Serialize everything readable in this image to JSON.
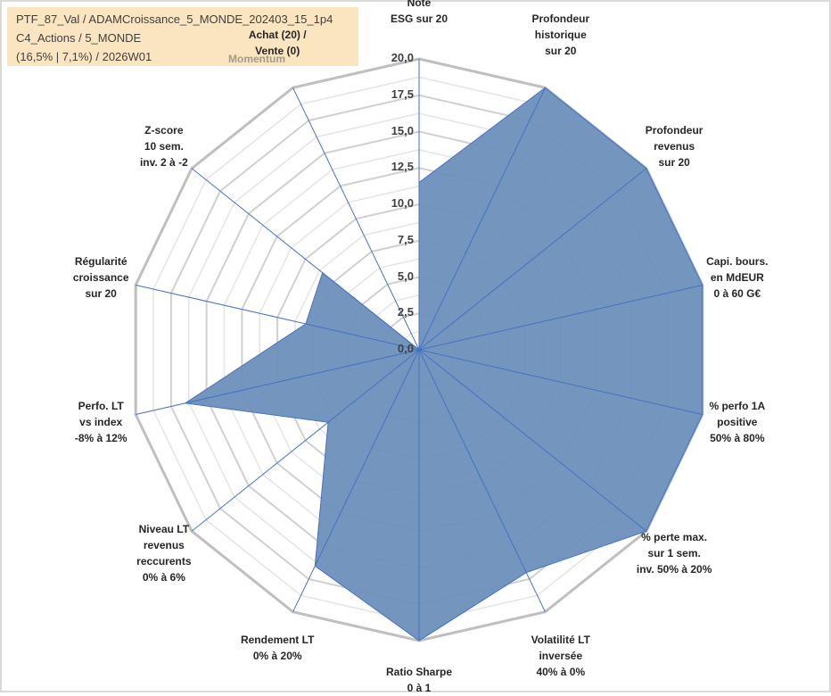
{
  "header": {
    "line1": "PTF_87_Val / ADAMCroissance_5_MONDE_202403_15_1p4",
    "line2": "C4_Actions / 5_MONDE",
    "line3": "(16,5% | 7,1%) / 2026W01",
    "momentum_label": "Momentum"
  },
  "chart_data": {
    "type": "radar",
    "title": "",
    "rmin": 0,
    "rmax": 20,
    "tick_step": 2.5,
    "tick_labels": [
      "0,0",
      "2,5",
      "5,0",
      "7,5",
      "10,0",
      "12,5",
      "15,0",
      "17,5",
      "20,0"
    ],
    "grid": true,
    "fill_color": "#6b8fba",
    "line_color": "#4472c4",
    "grid_color": "#bfbfbf",
    "categories": [
      [
        "Note",
        "ESG sur 20"
      ],
      [
        "Profondeur",
        "historique",
        "sur 20"
      ],
      [
        "Profondeur",
        "revenus",
        "sur 20"
      ],
      [
        "Capi. bours.",
        "en MdEUR",
        "0 à 60 G€"
      ],
      [
        "% perfo 1A",
        "positive",
        "50% à 80%"
      ],
      [
        "% perte max.",
        "sur 1 sem.",
        "inv. 50% à 20%"
      ],
      [
        "Volatilité LT",
        "inversée",
        "40% à 0%"
      ],
      [
        "Ratio Sharpe",
        "0 à 1"
      ],
      [
        "Rendement LT",
        "0% à 20%"
      ],
      [
        "Niveau LT",
        "revenus",
        "reccurents",
        "0% à 6%"
      ],
      [
        "Perfo. LT",
        "vs index",
        "-8% à 12%"
      ],
      [
        "Régularité",
        "croissance",
        "sur 20"
      ],
      [
        "Z-score",
        "10 sem.",
        "inv. 2 à -2"
      ],
      [
        "Achat (20) /",
        "Vente (0)"
      ]
    ],
    "series": [
      {
        "values": [
          11.5,
          20,
          20,
          20,
          20,
          20,
          17,
          20,
          16.5,
          8,
          16.5,
          8,
          8.5,
          0
        ]
      }
    ]
  }
}
